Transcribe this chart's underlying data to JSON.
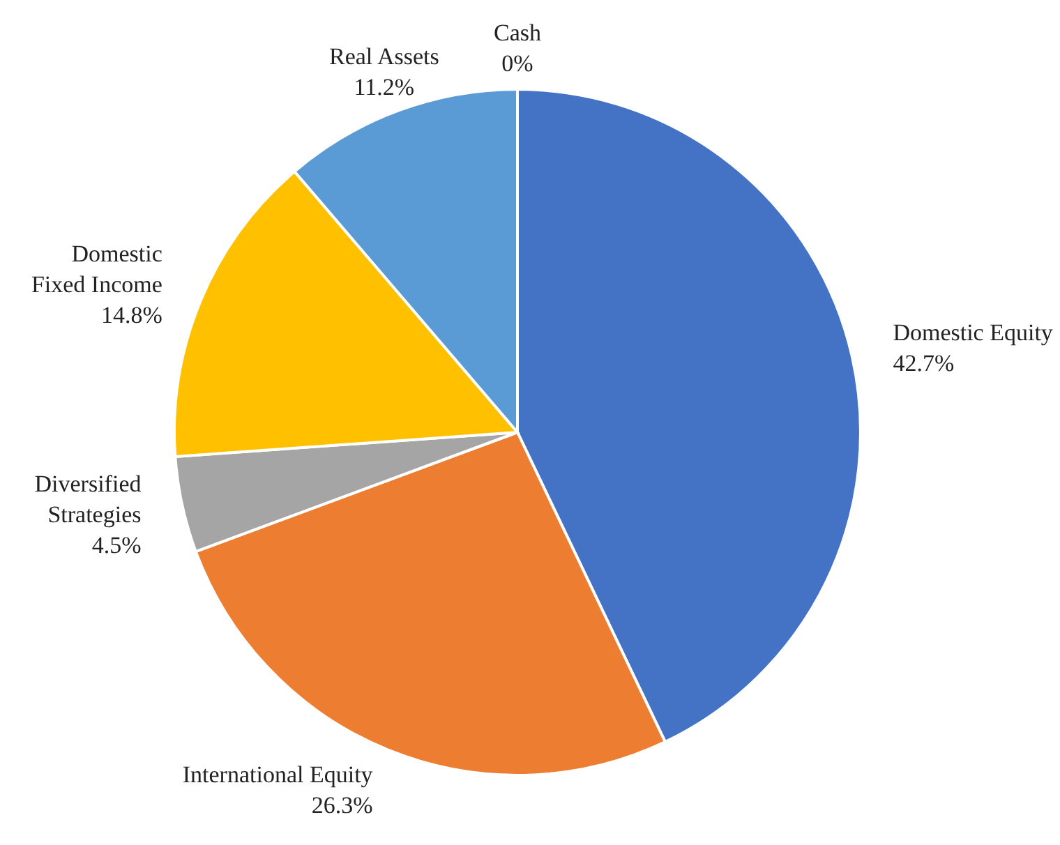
{
  "chart_data": {
    "type": "pie",
    "categories": [
      "Domestic Equity",
      "International Equity",
      "Diversified\nStrategies",
      "Domestic\nFixed Income",
      "Real Assets",
      "Cash"
    ],
    "values": [
      42.7,
      26.3,
      4.5,
      14.8,
      11.2,
      0
    ],
    "colors": [
      "#4472c4",
      "#ed7d31",
      "#a5a5a5",
      "#ffc000",
      "#5b9bd5",
      "#70ad47"
    ],
    "value_labels": [
      "42.7%",
      "26.3%",
      "4.5%",
      "14.8%",
      "11.2%",
      "0%"
    ]
  }
}
